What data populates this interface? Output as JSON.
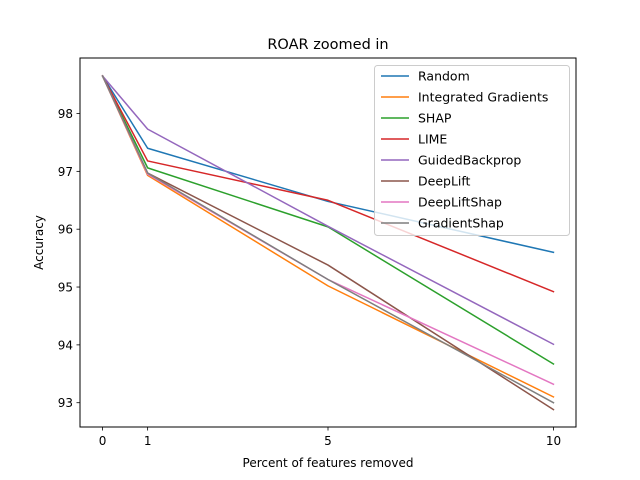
{
  "chart_data": {
    "type": "line",
    "title": "ROAR zoomed in",
    "xlabel": "Percent of features removed",
    "ylabel": "Accuracy",
    "x": [
      0,
      1,
      5,
      10
    ],
    "xticks": [
      0,
      1,
      5,
      10
    ],
    "yticks": [
      93,
      94,
      95,
      96,
      97,
      98
    ],
    "xlim": [
      -0.5,
      10.5
    ],
    "ylim": [
      92.58,
      98.96
    ],
    "grid": false,
    "legend_position": "top-right",
    "series": [
      {
        "name": "Random",
        "color": "#1f77b4",
        "values": [
          98.65,
          97.4,
          96.48,
          95.6
        ]
      },
      {
        "name": "Integrated Gradients",
        "color": "#ff7f0e",
        "values": [
          98.65,
          96.93,
          95.02,
          93.1
        ]
      },
      {
        "name": "SHAP",
        "color": "#2ca02c",
        "values": [
          98.65,
          97.06,
          96.04,
          93.67
        ]
      },
      {
        "name": "LIME",
        "color": "#d62728",
        "values": [
          98.65,
          97.18,
          96.5,
          94.92
        ]
      },
      {
        "name": "GuidedBackprop",
        "color": "#9467bd",
        "values": [
          98.65,
          97.73,
          96.05,
          94.01
        ]
      },
      {
        "name": "DeepLift",
        "color": "#8c564b",
        "values": [
          98.65,
          96.97,
          95.38,
          92.88
        ]
      },
      {
        "name": "DeepLiftShap",
        "color": "#e377c2",
        "values": [
          98.65,
          96.95,
          95.13,
          93.32
        ]
      },
      {
        "name": "GradientShap",
        "color": "#7f7f7f",
        "values": [
          98.65,
          96.97,
          95.13,
          93.0
        ]
      }
    ]
  }
}
